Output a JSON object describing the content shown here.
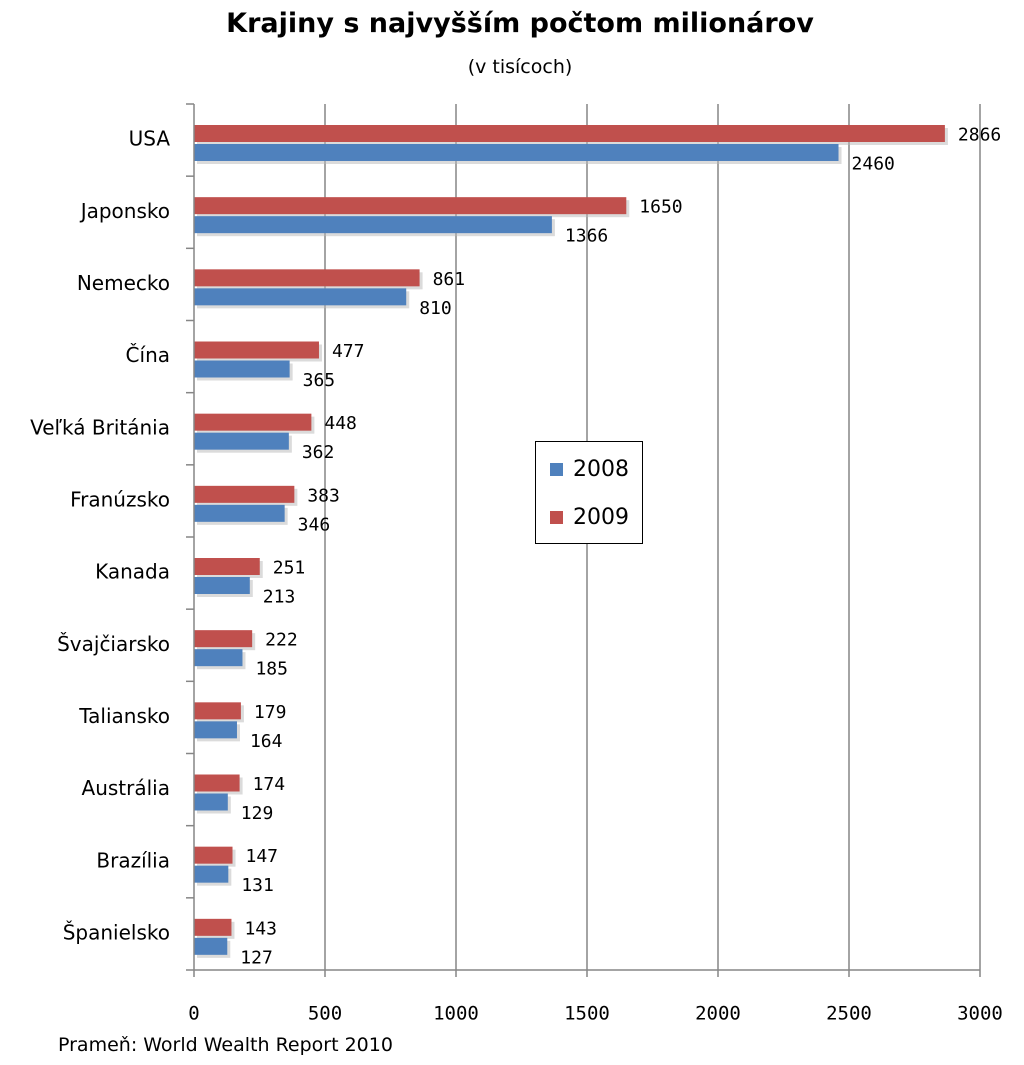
{
  "chart_data": {
    "type": "bar",
    "orientation": "horizontal",
    "title": "Krajiny s najvyšším počtom milionárov",
    "subtitle": "(v tisícoch)",
    "categories": [
      "USA",
      "Japonsko",
      "Nemecko",
      "Čína",
      "Veľká Británia",
      "Franúzsko",
      "Kanada",
      "Švajčiarsko",
      "Taliansko",
      "Austrália",
      "Brazília",
      "Španielsko"
    ],
    "series": [
      {
        "name": "2009",
        "color": "#c0504d",
        "values": [
          2866,
          1650,
          861,
          477,
          448,
          383,
          251,
          222,
          179,
          174,
          147,
          143
        ]
      },
      {
        "name": "2008",
        "color": "#4f81bd",
        "values": [
          2460,
          1366,
          810,
          365,
          362,
          346,
          213,
          185,
          164,
          129,
          131,
          127
        ]
      }
    ],
    "xlim": [
      0,
      3000
    ],
    "xticks": [
      "0",
      "500",
      "1000",
      "1500",
      "2000",
      "2500",
      "3000"
    ],
    "grid": true,
    "legend": {
      "position": "center",
      "entries": [
        "2008",
        "2009"
      ]
    },
    "source": "Prameň: World Wealth Report 2010"
  }
}
